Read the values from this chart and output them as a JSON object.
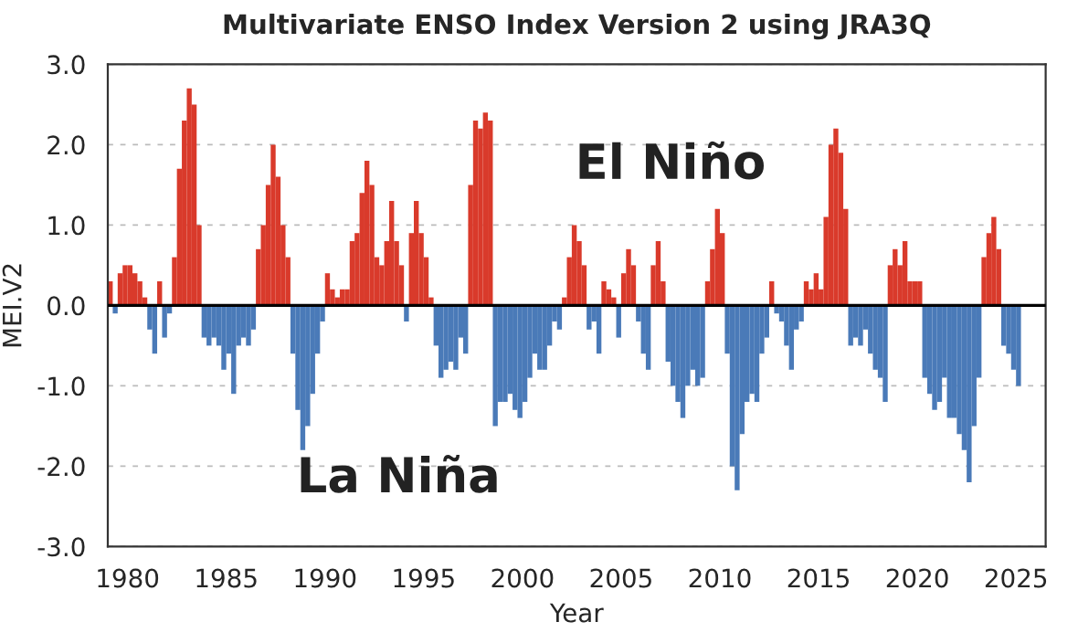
{
  "chart_data": {
    "type": "bar",
    "title": "Multivariate ENSO Index Version 2 using JRA3Q",
    "xlabel": "Year",
    "ylabel": "MEI.V2",
    "x": [
      1979,
      1979.25,
      1979.5,
      1979.75,
      1980,
      1980.25,
      1980.5,
      1980.75,
      1981,
      1981.25,
      1981.5,
      1981.75,
      1982,
      1982.25,
      1982.5,
      1982.75,
      1983,
      1983.25,
      1983.5,
      1983.75,
      1984,
      1984.25,
      1984.5,
      1984.75,
      1985,
      1985.25,
      1985.5,
      1985.75,
      1986,
      1986.25,
      1986.5,
      1986.75,
      1987,
      1987.25,
      1987.5,
      1987.75,
      1988,
      1988.25,
      1988.5,
      1988.75,
      1989,
      1989.25,
      1989.5,
      1989.75,
      1990,
      1990.25,
      1990.5,
      1990.75,
      1991,
      1991.25,
      1991.5,
      1991.75,
      1992,
      1992.25,
      1992.5,
      1992.75,
      1993,
      1993.25,
      1993.5,
      1993.75,
      1994,
      1994.25,
      1994.5,
      1994.75,
      1995,
      1995.25,
      1995.5,
      1995.75,
      1996,
      1996.25,
      1996.5,
      1996.75,
      1997,
      1997.25,
      1997.5,
      1997.75,
      1998,
      1998.25,
      1998.5,
      1998.75,
      1999,
      1999.25,
      1999.5,
      1999.75,
      2000,
      2000.25,
      2000.5,
      2000.75,
      2001,
      2001.25,
      2001.5,
      2001.75,
      2002,
      2002.25,
      2002.5,
      2002.75,
      2003,
      2003.25,
      2003.5,
      2003.75,
      2004,
      2004.25,
      2004.5,
      2004.75,
      2005,
      2005.25,
      2005.5,
      2005.75,
      2006,
      2006.25,
      2006.5,
      2006.75,
      2007,
      2007.25,
      2007.5,
      2007.75,
      2008,
      2008.25,
      2008.5,
      2008.75,
      2009,
      2009.25,
      2009.5,
      2009.75,
      2010,
      2010.25,
      2010.5,
      2010.75,
      2011,
      2011.25,
      2011.5,
      2011.75,
      2012,
      2012.25,
      2012.5,
      2012.75,
      2013,
      2013.25,
      2013.5,
      2013.75,
      2014,
      2014.25,
      2014.5,
      2014.75,
      2015,
      2015.25,
      2015.5,
      2015.75,
      2016,
      2016.25,
      2016.5,
      2016.75,
      2017,
      2017.25,
      2017.5,
      2017.75,
      2018,
      2018.25,
      2018.5,
      2018.75,
      2019,
      2019.25,
      2019.5,
      2019.75,
      2020,
      2020.25,
      2020.5,
      2020.75,
      2021,
      2021.25,
      2021.5,
      2021.75,
      2022,
      2022.25,
      2022.5,
      2022.75,
      2023,
      2023.25,
      2023.5,
      2023.75,
      2024,
      2024.25,
      2024.5,
      2024.75,
      2025
    ],
    "series": [
      {
        "color": "#d93a2b",
        "values": [
          0.3,
          null,
          0.4,
          0.5,
          0.5,
          0.4,
          0.3,
          0.1,
          null,
          null,
          0.3,
          null,
          null,
          0.6,
          1.7,
          2.3,
          2.7,
          2.5,
          1.0,
          null,
          null,
          null,
          null,
          null,
          null,
          null,
          null,
          null,
          null,
          null,
          0.7,
          1.0,
          1.5,
          2.0,
          1.6,
          1.0,
          0.6,
          null,
          null,
          null,
          null,
          null,
          null,
          null,
          0.4,
          0.2,
          0.1,
          0.2,
          0.2,
          0.8,
          0.9,
          1.4,
          1.8,
          1.5,
          0.6,
          0.5,
          0.8,
          1.3,
          0.8,
          0.5,
          null,
          0.9,
          1.3,
          0.9,
          0.6,
          0.1,
          null,
          null,
          null,
          null,
          null,
          null,
          null,
          1.5,
          2.3,
          2.2,
          2.4,
          2.3,
          null,
          null,
          null,
          null,
          null,
          null,
          null,
          null,
          null,
          null,
          null,
          null,
          null,
          null,
          0.1,
          0.6,
          1.0,
          0.8,
          0.5,
          null,
          null,
          null,
          0.3,
          0.2,
          0.1,
          null,
          0.4,
          0.7,
          0.5,
          null,
          null,
          null,
          0.5,
          0.8,
          0.3,
          null,
          null,
          null,
          null,
          null,
          null,
          null,
          null,
          0.3,
          0.7,
          1.2,
          0.9,
          null,
          null,
          null,
          null,
          null,
          null,
          null,
          null,
          null,
          0.3,
          null,
          null,
          null,
          null,
          null,
          null,
          0.3,
          0.2,
          0.4,
          0.2,
          1.1,
          2.0,
          2.2,
          1.9,
          1.2,
          null,
          null,
          null,
          null,
          null,
          null,
          null,
          null,
          0.5,
          0.7,
          0.5,
          0.8,
          0.3,
          0.3,
          0.3,
          null,
          null,
          null,
          null,
          null,
          null,
          null,
          null,
          null,
          null,
          null,
          null,
          0.6,
          0.9,
          1.1,
          0.7,
          null,
          null,
          null,
          null
        ]
      },
      {
        "color": "#4a7ab8",
        "values": [
          null,
          -0.1,
          null,
          null,
          null,
          null,
          null,
          null,
          -0.3,
          -0.6,
          null,
          -0.4,
          -0.1,
          null,
          null,
          null,
          null,
          null,
          null,
          -0.4,
          -0.5,
          -0.4,
          -0.5,
          -0.8,
          -0.6,
          -1.1,
          -0.5,
          -0.4,
          -0.5,
          -0.3,
          null,
          null,
          null,
          null,
          null,
          null,
          null,
          -0.6,
          -1.3,
          -1.8,
          -1.5,
          -1.1,
          -0.6,
          -0.2,
          null,
          null,
          null,
          null,
          null,
          null,
          null,
          null,
          null,
          null,
          null,
          null,
          null,
          null,
          null,
          null,
          -0.2,
          null,
          null,
          null,
          null,
          null,
          -0.5,
          -0.9,
          -0.8,
          -0.7,
          -0.8,
          -0.4,
          -0.6,
          null,
          null,
          null,
          null,
          null,
          -1.5,
          -1.2,
          -1.2,
          -1.1,
          -1.3,
          -1.4,
          -1.2,
          -0.9,
          -0.6,
          -0.8,
          -0.8,
          -0.5,
          -0.2,
          -0.3,
          null,
          null,
          null,
          null,
          null,
          -0.3,
          -0.2,
          -0.6,
          null,
          null,
          null,
          -0.4,
          null,
          null,
          null,
          -0.2,
          -0.6,
          -0.8,
          null,
          null,
          null,
          -0.7,
          -1.0,
          -1.2,
          -1.4,
          -1.0,
          -0.8,
          -1.0,
          -0.9,
          null,
          null,
          null,
          null,
          -0.6,
          -2.0,
          -2.3,
          -1.6,
          -1.2,
          -1.1,
          -1.2,
          -0.6,
          -0.4,
          null,
          -0.1,
          -0.2,
          -0.5,
          -0.8,
          -0.3,
          -0.2,
          null,
          null,
          null,
          null,
          null,
          null,
          null,
          null,
          null,
          -0.5,
          -0.4,
          -0.5,
          -0.3,
          -0.6,
          -0.8,
          -0.9,
          -1.2,
          null,
          null,
          null,
          null,
          null,
          null,
          null,
          -0.9,
          -1.1,
          -1.3,
          -1.2,
          -0.9,
          -1.4,
          -1.4,
          -1.6,
          -1.8,
          -2.2,
          -1.5,
          -0.9,
          null,
          null,
          null,
          null,
          -0.5,
          -0.6,
          -0.8,
          -1.0
        ]
      }
    ],
    "xlim": [
      1979,
      2026.5
    ],
    "xticks": [
      1980,
      1985,
      1990,
      1995,
      2000,
      2005,
      2010,
      2015,
      2020,
      2025
    ],
    "ylim": [
      -3,
      3
    ],
    "yticks": [
      {
        "value": 3,
        "label": "3.0"
      },
      {
        "value": 2,
        "label": "2.0"
      },
      {
        "value": 1,
        "label": "1.0"
      },
      {
        "value": 0,
        "label": "0.0"
      },
      {
        "value": -1,
        "label": "-1.0"
      },
      {
        "value": -2,
        "label": "-2.0"
      },
      {
        "value": -3,
        "label": "-3.0"
      }
    ],
    "grid": "y",
    "ref_lines": [
      {
        "axis": "y",
        "value": 0,
        "color": "#000000",
        "line_style": "solid"
      }
    ],
    "annotations": [
      "El Niño",
      "La Niña"
    ]
  }
}
